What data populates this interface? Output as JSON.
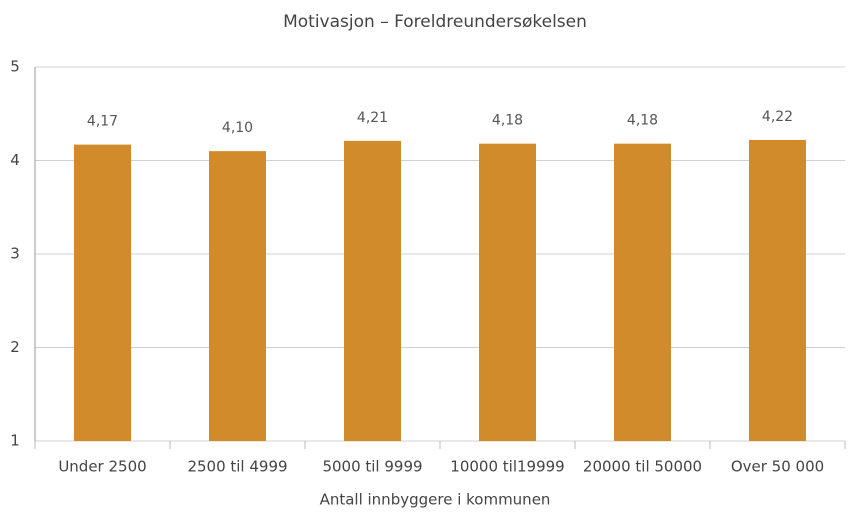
{
  "chart_data": {
    "type": "bar",
    "title": "Motivasjon – Foreldreundersøkelsen",
    "x_label": "Antall innbyggere i kommunen",
    "categories": [
      "Under 2500",
      "2500 til 4999",
      "5000 til 9999",
      "10000 til19999",
      "20000 til 50000",
      "Over 50 000"
    ],
    "values": [
      4.17,
      4.1,
      4.21,
      4.18,
      4.18,
      4.22
    ],
    "value_labels": [
      "4,17",
      "4,10",
      "4,21",
      "4,18",
      "4,18",
      "4,22"
    ],
    "color": "#d18b2b",
    "ylim": [
      1,
      5
    ],
    "yticks": [
      1,
      2,
      3,
      4,
      5
    ],
    "grid": true
  }
}
